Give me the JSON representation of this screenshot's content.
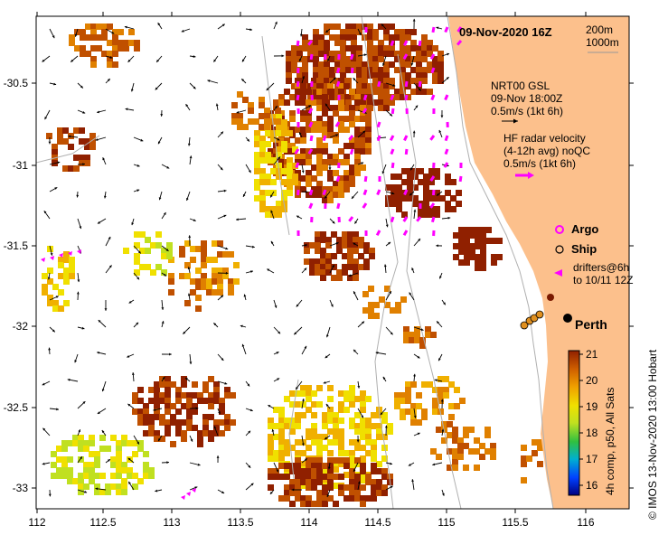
{
  "title": "09-Nov-2020 16Z",
  "depth_labels": [
    "200m",
    "1000m"
  ],
  "nrt_label": {
    "line1": "NRT00 GSL",
    "line2": "09-Nov 18:00Z",
    "line3": "0.5m/s (1kt 6h)"
  },
  "hf_label": {
    "line1": "HF radar velocity",
    "line2": "(4-12h avg) noQC",
    "line3": "0.5m/s (1kt 6h)"
  },
  "legend": {
    "argo": "Argo",
    "ship": "Ship",
    "drifters_line1": "drifters@6h",
    "drifters_line2": "to 10/11 12Z"
  },
  "place": "Perth",
  "colorbar": {
    "ticks": [
      "16",
      "17",
      "18",
      "19",
      "20",
      "21"
    ],
    "label": "4h comp, p50, All Sats"
  },
  "credit": "© IMOS 13-Nov-2020 13:00 Hobart",
  "x_ticks": [
    "112",
    "112.5",
    "113",
    "113.5",
    "114",
    "114.5",
    "115",
    "115.5",
    "116"
  ],
  "y_ticks": [
    "-30.5",
    "-31",
    "-31.5",
    "-32",
    "-32.5",
    "-33"
  ],
  "colors": {
    "land": "#fcc08c",
    "hf_vectors": "#ff00ff",
    "argo": "#ff00ff",
    "sst_scale": [
      "#000080",
      "#0060ff",
      "#00c0c0",
      "#40c040",
      "#c0e020",
      "#f0e000",
      "#f0b000",
      "#e08000",
      "#c05000",
      "#902000"
    ]
  }
}
